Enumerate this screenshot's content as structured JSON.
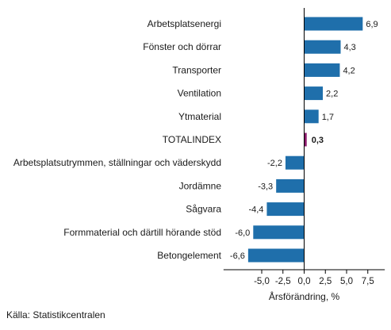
{
  "chart_data": {
    "type": "bar",
    "orientation": "horizontal",
    "categories": [
      "Arbetsplatsenergi",
      "Fönster och dörrar",
      "Transporter",
      "Ventilation",
      "Ytmaterial",
      "TOTALINDEX",
      "Arbetsplatsutrymmen, ställningar och väderskydd",
      "Jordämne",
      "Sågvara",
      "Formmaterial och därtill hörande stöd",
      "Betongelement"
    ],
    "values": [
      6.9,
      4.3,
      4.2,
      2.2,
      1.7,
      0.3,
      -2.2,
      -3.3,
      -4.4,
      -6.0,
      -6.6
    ],
    "value_labels": [
      "6,9",
      "4,3",
      "4,2",
      "2,2",
      "1,7",
      "0,3",
      "-2,2",
      "-3,3",
      "-4,4",
      "-6,0",
      "-6,6"
    ],
    "highlight_category": "TOTALINDEX",
    "xlabel": "Årsförändring, %",
    "xlim": [
      -9.5,
      9.5
    ],
    "xticks": [
      -5.0,
      -2.5,
      0.0,
      2.5,
      5.0,
      7.5
    ],
    "xtick_labels": [
      "-5,0",
      "-2,5",
      "0,0",
      "2,5",
      "5,0",
      "7,5"
    ],
    "grid": false,
    "colors": {
      "bar": "#1f6fab",
      "highlight": "#8b1a6b",
      "axis": "#000000"
    }
  },
  "source": "Källa: Statistikcentralen"
}
